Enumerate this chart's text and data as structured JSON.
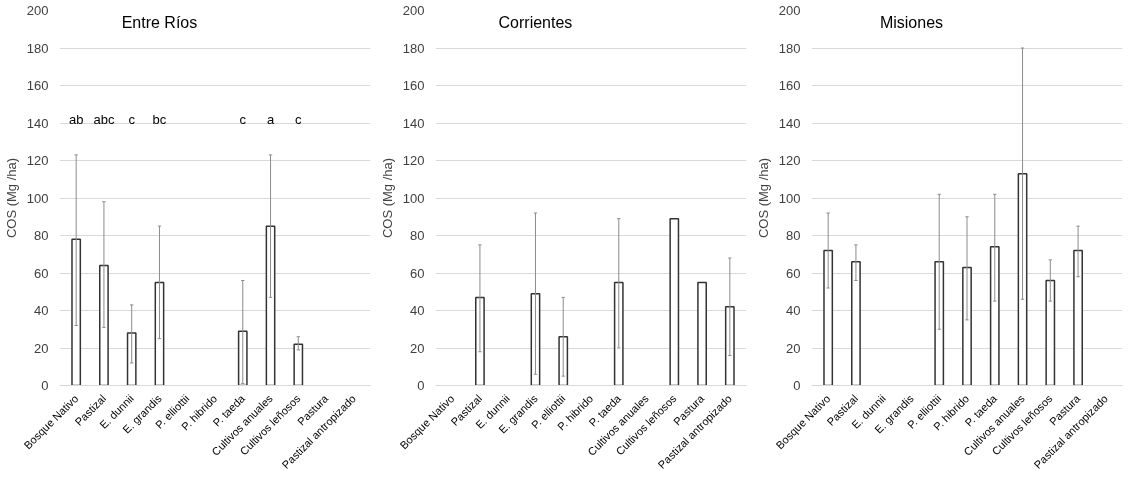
{
  "chart_data": [
    {
      "type": "bar",
      "title": "Entre Ríos",
      "ylabel": "COS (Mg /ha)",
      "categories": [
        "Bosque Nativo",
        "Pastizal",
        "E. dunnii",
        "E. grandis",
        "P. elliottii",
        "P. hibrido",
        "P. taeda",
        "Cultivos anuales",
        "Cultivos leñosos",
        "Pastura",
        "Pastizal antropizado"
      ],
      "series": [
        {
          "color": "#ffffff",
          "values": [
            78,
            64,
            28,
            55,
            null,
            null,
            29,
            85,
            22,
            null,
            null
          ],
          "errors": [
            [
              32,
              123
            ],
            [
              31,
              98
            ],
            [
              12,
              43
            ],
            [
              25,
              85
            ],
            null,
            null,
            [
              1,
              56
            ],
            [
              47,
              123
            ],
            [
              19,
              26
            ],
            null,
            null
          ]
        }
      ],
      "ylim": [
        0,
        200
      ],
      "yticks": [
        0,
        20,
        40,
        60,
        80,
        100,
        120,
        140,
        160,
        180,
        200
      ],
      "grid": "y",
      "annotations": [
        "ab",
        "abc",
        "c",
        "bc",
        "c",
        "a",
        "c"
      ]
    },
    {
      "type": "bar",
      "title": "Corrientes",
      "ylabel": "COS (Mg /ha)",
      "categories": [
        "Bosque Nativo",
        "Pastizal",
        "E. dunnii",
        "E. grandis",
        "P. elliottii",
        "P. hibrido",
        "P. taeda",
        "Cultivos anuales",
        "Cultivos leñosos",
        "Pastura",
        "Pastizal antropizado"
      ],
      "series": [
        {
          "color": "#ffffff",
          "values": [
            null,
            47,
            null,
            49,
            26,
            null,
            55,
            null,
            89,
            55,
            42
          ],
          "errors": [
            null,
            [
              18,
              75
            ],
            null,
            [
              6,
              92
            ],
            [
              5,
              47
            ],
            null,
            [
              20,
              89
            ],
            null,
            null,
            null,
            [
              16,
              68
            ]
          ]
        }
      ],
      "ylim": [
        0,
        200
      ],
      "yticks": [
        0,
        20,
        40,
        60,
        80,
        100,
        120,
        140,
        160,
        180,
        200
      ],
      "grid": "y"
    },
    {
      "type": "bar",
      "title": "Misiones",
      "ylabel": "COS (Mg /ha)",
      "categories": [
        "Bosque Nativo",
        "Pastizal",
        "E. dunnii",
        "E. grandis",
        "P. elliottii",
        "P. hibrido",
        "P. taeda",
        "Cultivos anuales",
        "Cultivos leñosos",
        "Pastura",
        "Pastizal antropizado"
      ],
      "series": [
        {
          "color": "#ffffff",
          "values": [
            72,
            66,
            null,
            null,
            66,
            63,
            74,
            113,
            56,
            72,
            null
          ],
          "errors": [
            [
              52,
              92
            ],
            [
              56,
              75
            ],
            null,
            null,
            [
              30,
              102
            ],
            [
              35,
              90
            ],
            [
              45,
              102
            ],
            [
              46,
              180
            ],
            [
              45,
              67
            ],
            [
              58,
              85
            ],
            null
          ]
        }
      ],
      "ylim": [
        0,
        200
      ],
      "yticks": [
        0,
        20,
        40,
        60,
        80,
        100,
        120,
        140,
        160,
        180,
        200
      ],
      "grid": "y"
    }
  ]
}
